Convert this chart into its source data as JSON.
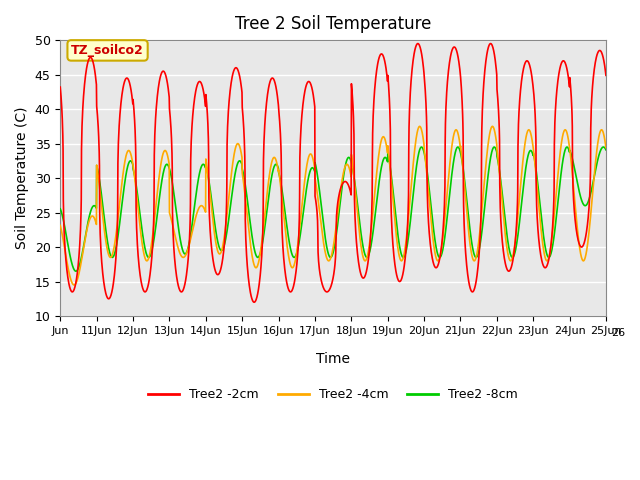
{
  "title": "Tree 2 Soil Temperature",
  "xlabel": "Time",
  "ylabel": "Soil Temperature (C)",
  "ylim": [
    10,
    50
  ],
  "xlim": [
    0,
    15
  ],
  "background_color": "#e8e8e8",
  "grid_color": "#ffffff",
  "annotation_text": "TZ_soilco2",
  "annotation_bg": "#ffffcc",
  "annotation_border": "#ccaa00",
  "series": {
    "2cm": {
      "color": "#ff0000",
      "label": "Tree2 -2cm"
    },
    "4cm": {
      "color": "#ffaa00",
      "label": "Tree2 -4cm"
    },
    "8cm": {
      "color": "#00cc00",
      "label": "Tree2 -8cm"
    }
  },
  "tick_labels": [
    "Jun",
    "11Jun",
    "12Jun",
    "13Jun",
    "14Jun",
    "15Jun",
    "16Jun",
    "17Jun",
    "18Jun",
    "19Jun",
    "20Jun",
    "21Jun",
    "22Jun",
    "23Jun",
    "24Jun",
    "25Jun"
  ],
  "tick_labels_extra": "26",
  "yticks": [
    10,
    15,
    20,
    25,
    30,
    35,
    40,
    45,
    50
  ],
  "day_peaks_2cm": [
    47.5,
    44.5,
    45.5,
    44.0,
    46.0,
    44.5,
    44.0,
    29.5,
    48.0,
    49.5,
    49.0,
    49.5,
    47.0,
    47.0,
    48.5
  ],
  "day_troughs_2cm": [
    13.5,
    12.5,
    13.5,
    13.5,
    16.0,
    12.0,
    13.5,
    13.5,
    15.5,
    15.0,
    17.0,
    13.5,
    16.5,
    17.0,
    20.0
  ],
  "day_peaks_4cm": [
    24.5,
    34.0,
    34.0,
    26.0,
    35.0,
    33.0,
    33.5,
    32.0,
    36.0,
    37.5,
    37.0,
    37.5,
    37.0,
    37.0,
    37.0
  ],
  "day_troughs_4cm": [
    14.5,
    18.5,
    18.0,
    18.5,
    19.0,
    17.0,
    17.0,
    18.0,
    18.0,
    18.0,
    18.0,
    18.0,
    18.0,
    18.0,
    18.0
  ],
  "day_peaks_8cm": [
    26.0,
    32.5,
    32.0,
    32.0,
    32.5,
    32.0,
    31.5,
    33.0,
    33.0,
    34.5,
    34.5,
    34.5,
    34.0,
    34.5,
    34.5
  ],
  "day_troughs_8cm": [
    16.5,
    18.5,
    18.5,
    19.0,
    19.5,
    18.5,
    18.5,
    18.5,
    18.5,
    18.5,
    18.5,
    18.5,
    18.5,
    18.5,
    26.0
  ]
}
